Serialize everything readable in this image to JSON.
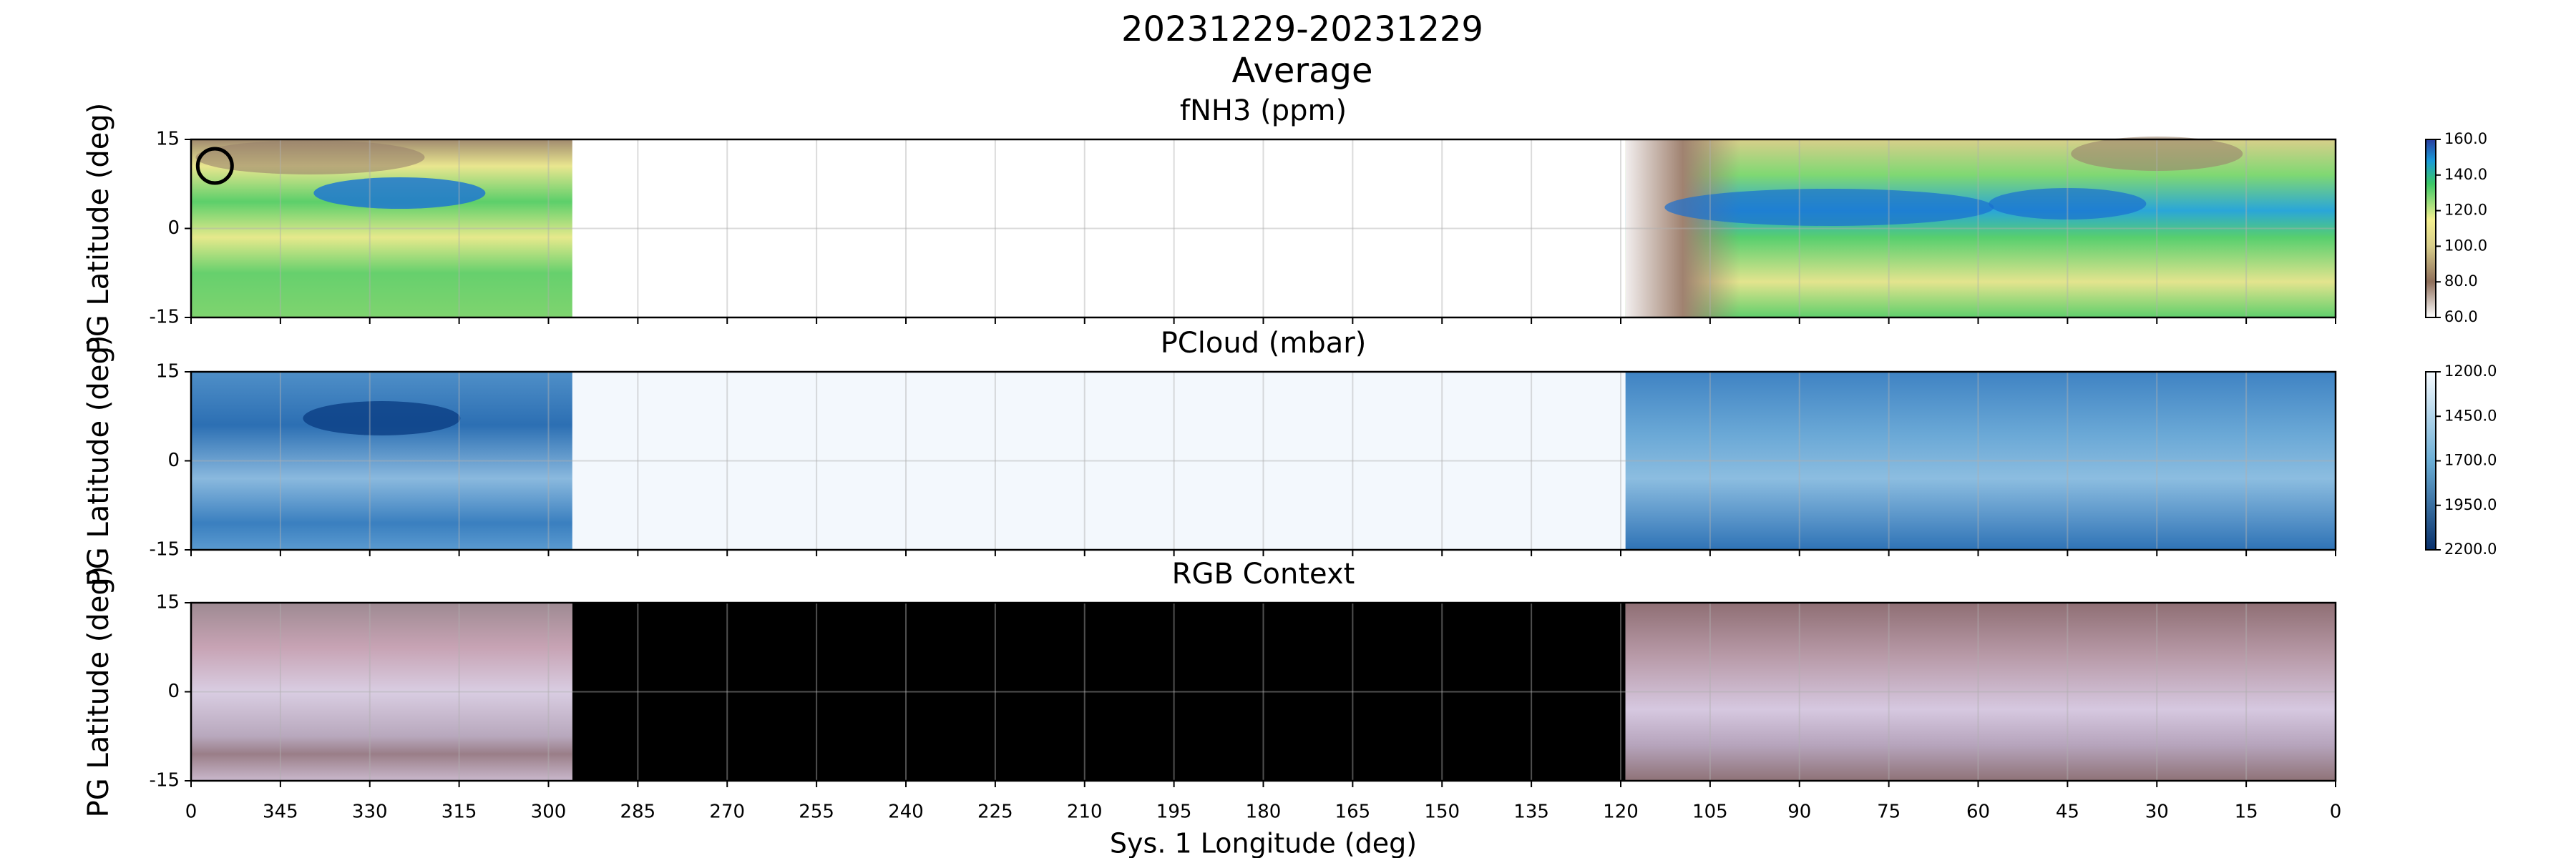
{
  "suptitle": [
    "20231229-20231229",
    "Average"
  ],
  "chart_data": [
    {
      "type": "heatmap",
      "title": "fNH3 (ppm)",
      "ylabel": "PG Latitude (deg)",
      "ylim": [
        -15,
        15
      ],
      "yticks": [
        -15,
        0,
        15
      ],
      "grid": true,
      "xlim": [
        360,
        0
      ],
      "xticks": [
        {
          "value": 360,
          "label": "0"
        },
        345,
        330,
        315,
        300,
        285,
        270,
        255,
        240,
        225,
        210,
        195,
        180,
        165,
        150,
        135,
        120,
        105,
        90,
        75,
        60,
        45,
        30,
        15,
        0
      ],
      "colorbar": {
        "clim": [
          60,
          160
        ],
        "ticks": [
          {
            "value": 60,
            "label": "60.0"
          },
          {
            "value": 80,
            "label": "80.0"
          },
          {
            "value": 100,
            "label": "100.0"
          },
          {
            "value": 120,
            "label": "120.0"
          },
          {
            "value": 140,
            "label": "140.0"
          },
          {
            "value": 160,
            "label": "160.0"
          }
        ]
      }
    },
    {
      "type": "heatmap",
      "title": "PCloud (mbar)",
      "ylabel": "PG Latitude (deg)",
      "ylim": [
        -15,
        15
      ],
      "yticks": [
        -15,
        0,
        15
      ],
      "grid": true,
      "xlim": [
        360,
        0
      ],
      "xticks": [
        {
          "value": 360,
          "label": "0"
        },
        345,
        330,
        315,
        300,
        285,
        270,
        255,
        240,
        225,
        210,
        195,
        180,
        165,
        150,
        135,
        120,
        105,
        90,
        75,
        60,
        45,
        30,
        15,
        0
      ],
      "colorbar": {
        "clim": [
          2200,
          1200
        ],
        "ticks": [
          {
            "value": 1200,
            "label": "1200.0"
          },
          {
            "value": 1450,
            "label": "1450.0"
          },
          {
            "value": 1700,
            "label": "1700.0"
          },
          {
            "value": 1950,
            "label": "1950.0"
          },
          {
            "value": 2200,
            "label": "2200.0"
          }
        ]
      }
    },
    {
      "type": "heatmap",
      "title": "RGB Context",
      "ylabel": "PG Latitude (deg)",
      "xlabel": "Sys. 1 Longitude (deg)",
      "ylim": [
        -15,
        15
      ],
      "yticks": [
        -15,
        0,
        15
      ],
      "grid": true,
      "xlim": [
        360,
        0
      ],
      "xticks": [
        {
          "value": 360,
          "label": "0"
        },
        345,
        330,
        315,
        300,
        285,
        270,
        255,
        240,
        225,
        210,
        195,
        180,
        165,
        150,
        135,
        120,
        105,
        90,
        75,
        60,
        45,
        30,
        15,
        0
      ]
    }
  ]
}
